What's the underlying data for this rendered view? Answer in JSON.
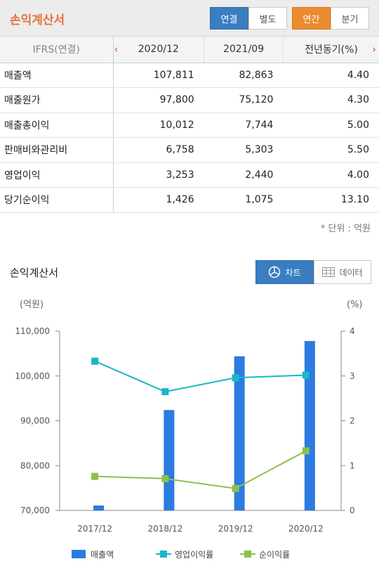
{
  "header": {
    "title": "손익계산서",
    "seg_consolidated": "연결",
    "seg_separate": "별도",
    "seg_annual": "연간",
    "seg_quarterly": "분기"
  },
  "table": {
    "label_header": "IFRS(연결)",
    "columns": [
      "2020/12",
      "2021/09",
      "전년동기(%)"
    ],
    "rows": [
      {
        "label": "매출액",
        "values": [
          "107,811",
          "82,863",
          "4.40"
        ]
      },
      {
        "label": "매출원가",
        "values": [
          "97,800",
          "75,120",
          "4.30"
        ]
      },
      {
        "label": "매출총이익",
        "values": [
          "10,012",
          "7,744",
          "5.00"
        ]
      },
      {
        "label": "판매비와관리비",
        "values": [
          "6,758",
          "5,303",
          "5.50"
        ]
      },
      {
        "label": "영업이익",
        "values": [
          "3,253",
          "2,440",
          "4.00"
        ]
      },
      {
        "label": "당기순이익",
        "values": [
          "1,426",
          "1,075",
          "13.10"
        ]
      }
    ],
    "unit_note": "* 단위 : 억원"
  },
  "section": {
    "title": "손익계산서",
    "chart_button": "차트",
    "data_button": "데이터"
  },
  "colors": {
    "bar": "#2b7be0",
    "operating_margin": "#1bb6c9",
    "net_margin": "#8cc04a"
  },
  "chart_data": {
    "type": "bar",
    "categories": [
      "2017/12",
      "2018/12",
      "2019/12",
      "2020/12"
    ],
    "left_unit": "(억원)",
    "right_unit": "(%)",
    "ylim_left": [
      70000,
      110000
    ],
    "yticks_left": [
      "70,000",
      "80,000",
      "90,000",
      "100,000",
      "110,000"
    ],
    "ylim_right": [
      0,
      4
    ],
    "yticks_right": [
      "0",
      "1",
      "2",
      "3",
      "4"
    ],
    "series": [
      {
        "name": "매출액",
        "type": "bar",
        "axis": "left",
        "values": [
          71100,
          92400,
          104400,
          107800
        ]
      },
      {
        "name": "영업이익률",
        "type": "line",
        "axis": "right",
        "values": [
          3.33,
          2.65,
          2.96,
          3.02
        ]
      },
      {
        "name": "순이익률",
        "type": "line",
        "axis": "right",
        "values": [
          0.76,
          0.71,
          0.49,
          1.33
        ]
      }
    ],
    "legend_position": "bottom"
  }
}
